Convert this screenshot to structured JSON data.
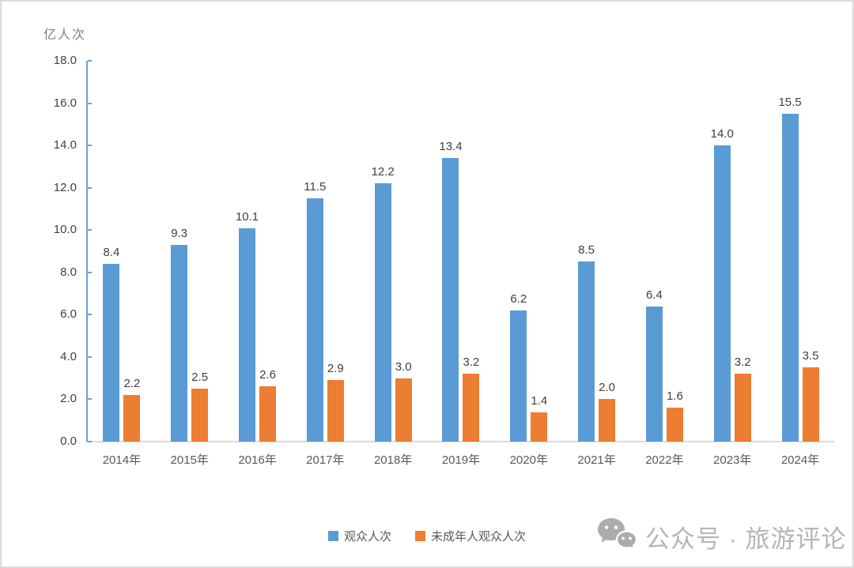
{
  "chart": {
    "unit_label": "亿人次"
  },
  "chart_data": {
    "type": "bar",
    "title": "",
    "xlabel": "",
    "ylabel": "亿人次",
    "categories": [
      "2014年",
      "2015年",
      "2016年",
      "2017年",
      "2018年",
      "2019年",
      "2020年",
      "2021年",
      "2022年",
      "2023年",
      "2024年"
    ],
    "series": [
      {
        "name": "观众人次",
        "color": "#5B9BD5",
        "values": [
          8.4,
          9.3,
          10.1,
          11.5,
          12.2,
          13.4,
          6.2,
          8.5,
          6.4,
          14.0,
          15.5
        ]
      },
      {
        "name": "未成年人观众人次",
        "color": "#ED7D31",
        "values": [
          2.2,
          2.5,
          2.6,
          2.9,
          3.0,
          3.2,
          1.4,
          2.0,
          1.6,
          3.2,
          3.5
        ]
      }
    ],
    "ylim": [
      0,
      18
    ],
    "ytick_step": 2,
    "ytick_labels": [
      "0.0",
      "2.0",
      "4.0",
      "6.0",
      "8.0",
      "10.0",
      "12.0",
      "14.0",
      "16.0",
      "18.0"
    ],
    "value_labels": true,
    "value_label_decimals": 1,
    "grid": false,
    "legend_position": "bottom-center"
  },
  "colors": {
    "y_axis_line": "#6E9FD9",
    "x_axis_line": "#D9D9D9",
    "tick_label": "#404040",
    "x_label": "#595959",
    "unit_label": "#7F7F7F",
    "watermark": "#B5B5B5"
  },
  "watermark": {
    "icon": "wechat-icon",
    "text": "公众号 · 旅游评论"
  }
}
